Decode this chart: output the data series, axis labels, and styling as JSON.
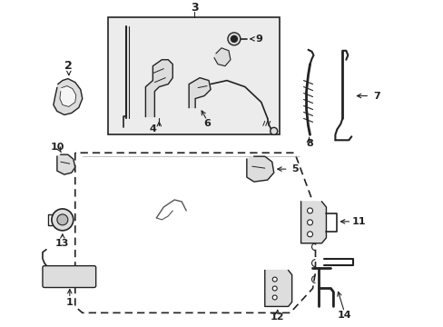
{
  "bg_color": "#ffffff",
  "line_color": "#222222",
  "figsize": [
    4.89,
    3.6
  ],
  "dpi": 100,
  "box_fill": "#ececec",
  "comp_fill": "#dddddd"
}
